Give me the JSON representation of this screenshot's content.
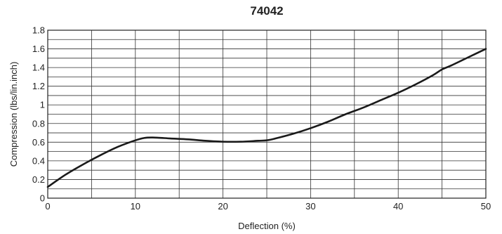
{
  "chart_data": {
    "type": "line",
    "title": "74042",
    "xlabel": "Deflection (%)",
    "ylabel": "Compression (lbs/lin.inch)",
    "xlim": [
      0,
      50
    ],
    "ylim": [
      0,
      1.8
    ],
    "xticks": [
      "0",
      "10",
      "20",
      "30",
      "40",
      "50"
    ],
    "yticks": [
      "0",
      "0.2",
      "0.4",
      "0.6",
      "0.8",
      "1",
      "1.2",
      "1.4",
      "1.6",
      "1.8"
    ],
    "grid": true,
    "series": [
      {
        "color": "#1a1a1a",
        "x": [
          0,
          2,
          4,
          6,
          8,
          10,
          11,
          12,
          14,
          16,
          18,
          20,
          22,
          24,
          25,
          26,
          28,
          30,
          32,
          34,
          36,
          38,
          40,
          42,
          44,
          45,
          46,
          48,
          50
        ],
        "y": [
          0.12,
          0.25,
          0.36,
          0.46,
          0.55,
          0.62,
          0.645,
          0.65,
          0.64,
          0.63,
          0.615,
          0.605,
          0.605,
          0.615,
          0.62,
          0.64,
          0.69,
          0.75,
          0.82,
          0.9,
          0.97,
          1.05,
          1.13,
          1.22,
          1.32,
          1.38,
          1.42,
          1.51,
          1.6
        ]
      }
    ]
  }
}
